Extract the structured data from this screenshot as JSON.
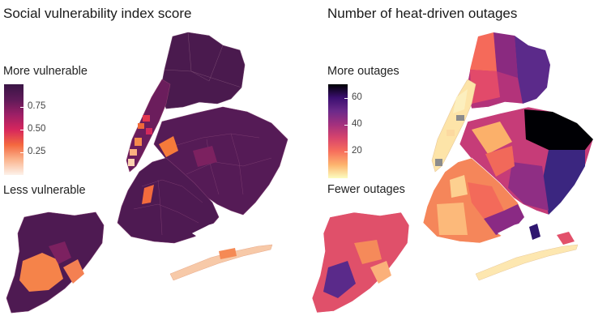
{
  "panels": [
    {
      "title": "Social vulnerability index score",
      "legend": {
        "top_label": "More vulnerable",
        "bottom_label": "Less vulnerable",
        "min": 0,
        "max": 1,
        "ticks": [
          "0.25",
          "0.50",
          "0.75"
        ],
        "tick_values": [
          0.25,
          0.5,
          0.75
        ],
        "palette": [
          "#fdf2ea",
          "#fbb58f",
          "#f4683f",
          "#d6265d",
          "#9c1f66",
          "#5e1a58",
          "#3a1545"
        ]
      }
    },
    {
      "title": "Number of heat-driven outages",
      "legend": {
        "top_label": "More outages",
        "bottom_label": "Fewer outages",
        "min": 0,
        "max": 70,
        "ticks": [
          "20",
          "40",
          "60"
        ],
        "tick_values": [
          20,
          40,
          60
        ],
        "palette": [
          "#fcfdbf",
          "#fdb46e",
          "#f76f5c",
          "#d8456c",
          "#a3307e",
          "#6c2a8a",
          "#3b0f70",
          "#000004"
        ]
      }
    }
  ]
}
